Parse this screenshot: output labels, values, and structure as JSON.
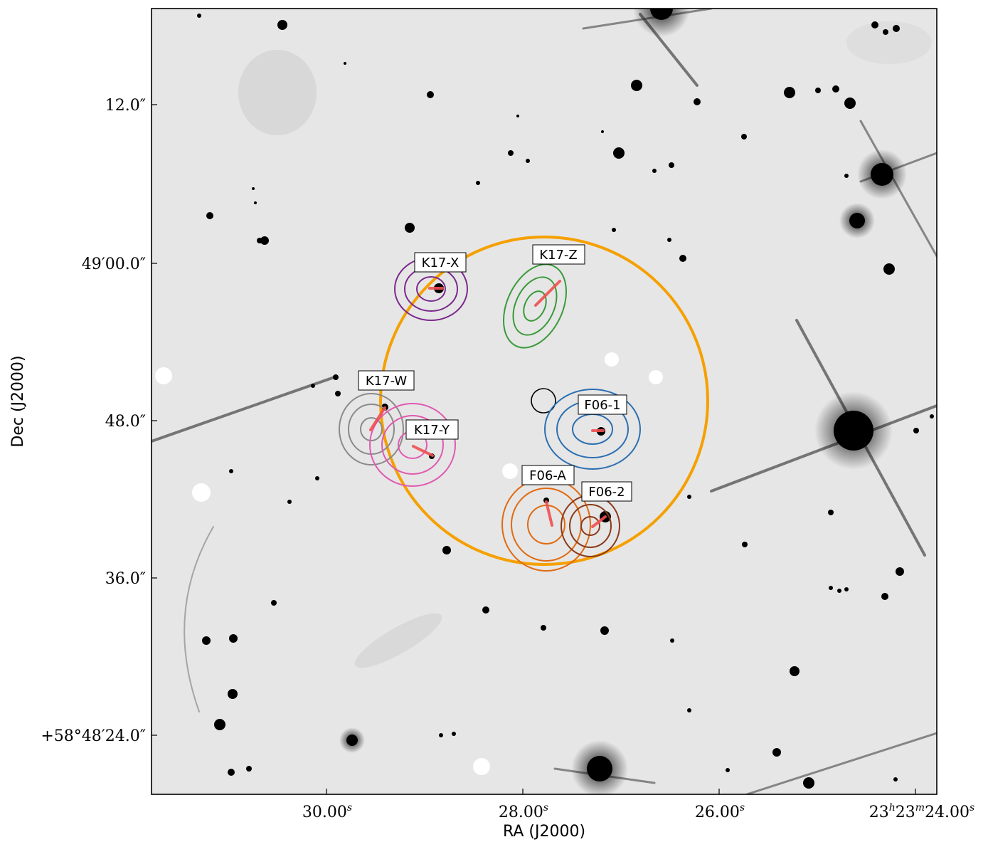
{
  "image": {
    "axes": {
      "xlabel": "RA (J2000)",
      "ylabel": "Dec (J2000)"
    },
    "x_ticks": [
      {
        "main": "30.00",
        "sup": "s"
      },
      {
        "main": "28.00",
        "sup": "s"
      },
      {
        "main": "26.00",
        "sup": "s"
      },
      {
        "main": "23",
        "sup": "h",
        "main2": "23",
        "sup2": "m",
        "main3": "24.00",
        "sup3": "s"
      }
    ],
    "y_ticks": [
      "12.0″",
      "49′00.0″",
      "48.0″",
      "36.0″",
      "+58°48′24.0″"
    ],
    "sources": [
      {
        "label": "K17-X",
        "color": "#7b2a8c"
      },
      {
        "label": "K17-Z",
        "color": "#3a9a3a"
      },
      {
        "label": "K17-W",
        "color": "#8a8a8a"
      },
      {
        "label": "K17-Y",
        "color": "#e05ab0"
      },
      {
        "label": "F06-1",
        "color": "#2c6fb0"
      },
      {
        "label": "F06-A",
        "color": "#e06a10"
      },
      {
        "label": "F06-2",
        "color": "#8a3a1a"
      }
    ],
    "colors": {
      "big_circle": "#f5a000",
      "arrow": "#f05050",
      "small_circle": "#000000",
      "frame": "#000000"
    }
  }
}
